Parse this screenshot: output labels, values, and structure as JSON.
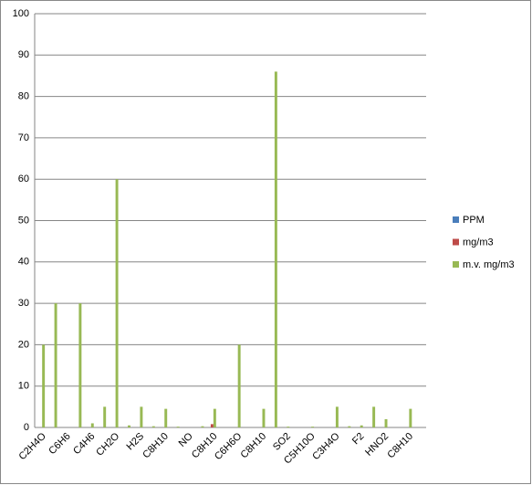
{
  "chart_data": {
    "type": "bar",
    "categories": [
      "C2H4O",
      null,
      "C6H6",
      null,
      "C4H6",
      null,
      "CH2O",
      null,
      "H2S",
      null,
      "C8H10",
      null,
      "NO",
      null,
      "C8H10",
      null,
      "C6H6O",
      null,
      "C8H10",
      null,
      "SO2",
      null,
      "C5H10O",
      null,
      "C3H4O",
      null,
      "F2",
      null,
      "HNO2",
      null,
      "C8H10",
      null
    ],
    "series": [
      {
        "name": "PPM",
        "color": "#4a7ebb",
        "values": [
          0,
          0,
          0,
          0,
          0,
          0,
          0,
          0,
          0,
          0,
          0,
          0,
          0,
          0,
          0,
          0,
          0,
          0,
          0,
          0,
          0,
          0,
          0,
          0,
          0,
          0,
          0,
          0,
          0,
          0,
          0,
          0
        ]
      },
      {
        "name": "mg/m3",
        "color": "#be4b48",
        "values": [
          0,
          0,
          0,
          0,
          0,
          0,
          0,
          0,
          0,
          0,
          0,
          0,
          0,
          0,
          0.8,
          0,
          0,
          0,
          0,
          0,
          0,
          0,
          0,
          0,
          0,
          0,
          0,
          0,
          0,
          0,
          0,
          0
        ]
      },
      {
        "name": "m.v. mg/m3",
        "color": "#98b954",
        "values": [
          20,
          30,
          0,
          30,
          1,
          5,
          60,
          0.5,
          5,
          0.3,
          4.5,
          0.2,
          0,
          0.3,
          4.5,
          0,
          20,
          0,
          4.5,
          86,
          0.2,
          0,
          0.2,
          0,
          5,
          0.3,
          0.5,
          5,
          2,
          0,
          4.5,
          0
        ]
      }
    ],
    "ylim": [
      0,
      100
    ],
    "yticks": [
      0,
      10,
      20,
      30,
      40,
      50,
      60,
      70,
      80,
      90,
      100
    ],
    "grid": true,
    "legend": "right"
  }
}
